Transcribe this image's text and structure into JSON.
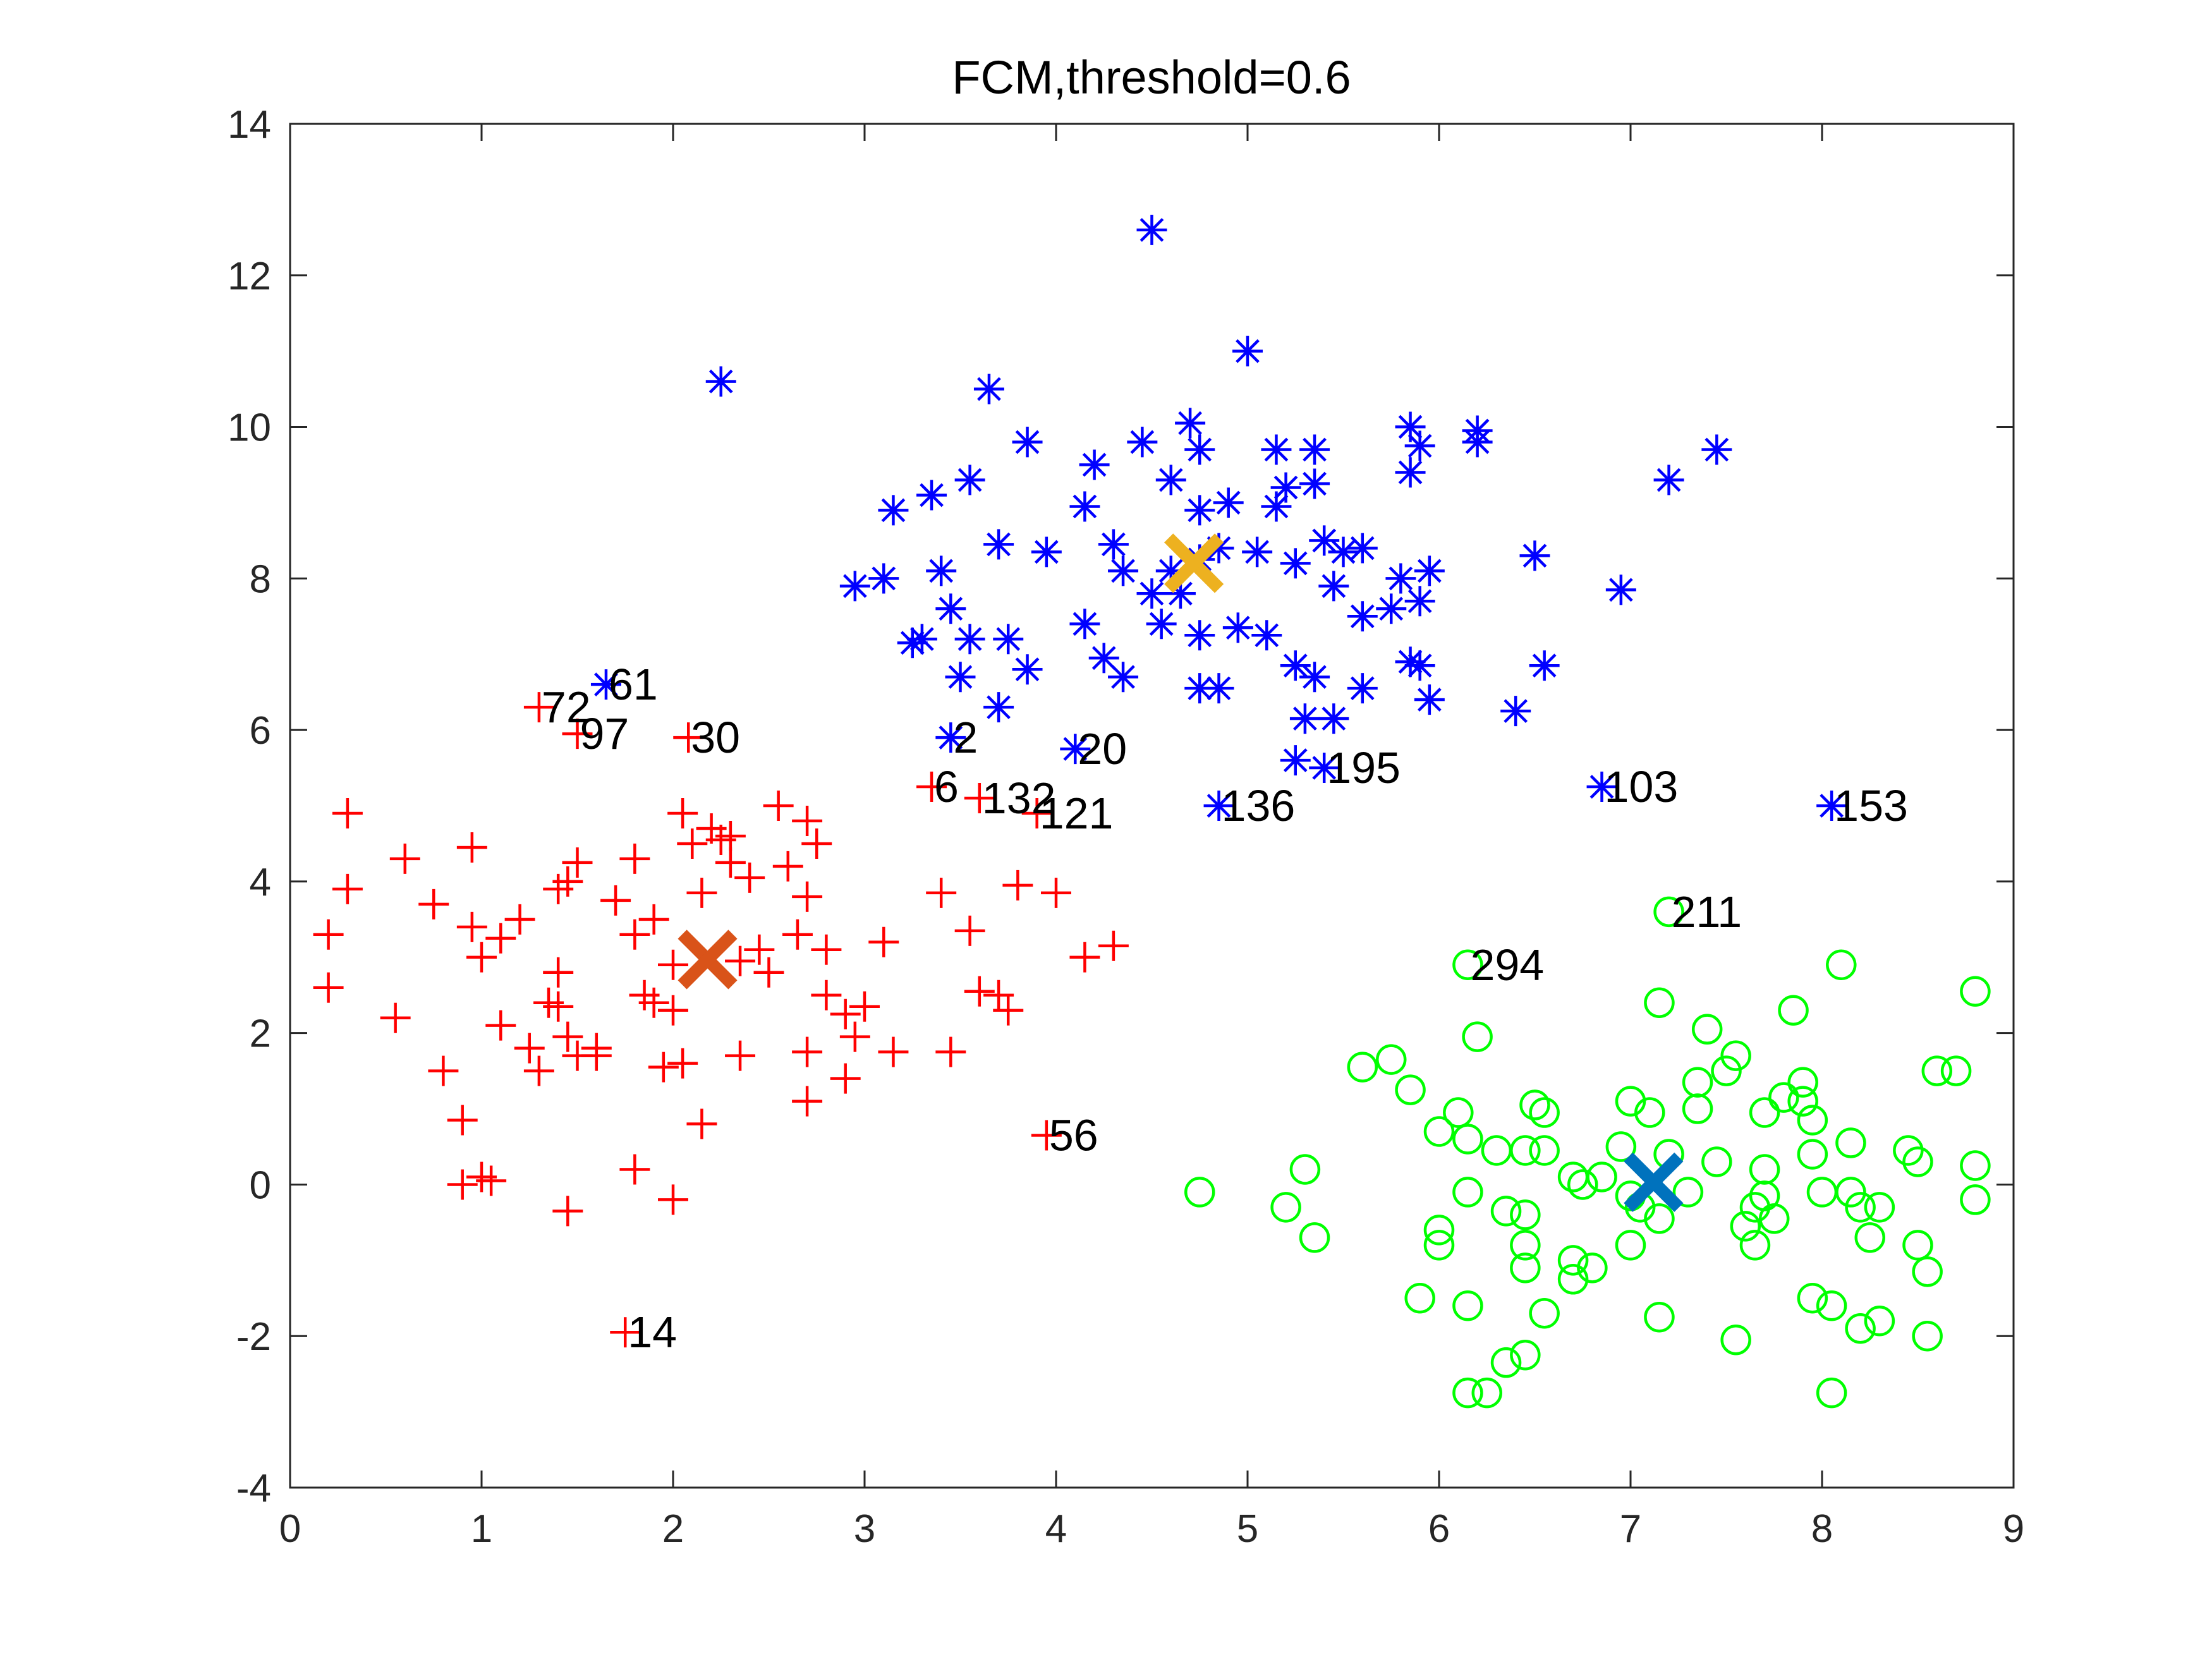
{
  "chart_data": {
    "type": "scatter",
    "title": "FCM,threshold=0.6",
    "xlabel": "",
    "ylabel": "",
    "xlim": [
      0,
      9
    ],
    "ylim": [
      -4,
      14
    ],
    "xticks": [
      0,
      1,
      2,
      3,
      4,
      5,
      6,
      7,
      8,
      9
    ],
    "yticks": [
      -4,
      -2,
      0,
      2,
      4,
      6,
      8,
      10,
      12,
      14
    ],
    "xtick_labels": [
      "0",
      "1",
      "2",
      "3",
      "4",
      "5",
      "6",
      "7",
      "8",
      "9"
    ],
    "ytick_labels": [
      "-4",
      "-2",
      "0",
      "2",
      "4",
      "6",
      "8",
      "10",
      "12",
      "14"
    ],
    "grid": false,
    "colors": {
      "cluster_red": "#ff0000",
      "cluster_blue": "#0000ff",
      "cluster_green": "#00ff00",
      "center_orange_red": "#d95319",
      "center_yellow": "#edb120",
      "center_blue": "#0072bd"
    },
    "series": [
      {
        "marker": "plus",
        "color": "#ff0000",
        "points": [
          [
            0.2,
            2.6
          ],
          [
            0.2,
            3.3
          ],
          [
            0.3,
            3.9
          ],
          [
            0.3,
            4.9
          ],
          [
            0.55,
            2.2
          ],
          [
            0.6,
            4.3
          ],
          [
            0.75,
            3.7
          ],
          [
            0.8,
            1.5
          ],
          [
            0.9,
            0.85
          ],
          [
            0.95,
            4.45
          ],
          [
            0.95,
            3.4
          ],
          [
            1.0,
            3.0
          ],
          [
            1.1,
            3.25
          ],
          [
            1.1,
            2.1
          ],
          [
            1.2,
            3.5
          ],
          [
            1.25,
            1.8
          ],
          [
            1.3,
            1.5
          ],
          [
            1.35,
            2.4
          ],
          [
            1.4,
            2.35
          ],
          [
            1.4,
            2.8
          ],
          [
            1.4,
            3.9
          ],
          [
            1.45,
            1.95
          ],
          [
            1.5,
            4.25
          ],
          [
            1.5,
            1.7
          ],
          [
            1.6,
            1.8
          ],
          [
            1.6,
            1.7
          ],
          [
            1.7,
            3.75
          ],
          [
            1.8,
            3.3
          ],
          [
            1.85,
            2.5
          ],
          [
            1.9,
            2.4
          ],
          [
            1.9,
            3.5
          ],
          [
            1.95,
            1.55
          ],
          [
            2.0,
            2.9
          ],
          [
            2.0,
            2.3
          ],
          [
            2.05,
            1.6
          ],
          [
            2.1,
            4.5
          ],
          [
            2.15,
            3.85
          ],
          [
            2.2,
            4.7
          ],
          [
            2.25,
            4.55
          ],
          [
            2.3,
            4.25
          ],
          [
            2.35,
            2.95
          ],
          [
            2.4,
            4.05
          ],
          [
            2.45,
            3.1
          ],
          [
            2.5,
            2.8
          ],
          [
            2.55,
            5.0
          ],
          [
            2.6,
            4.2
          ],
          [
            2.65,
            3.3
          ],
          [
            2.7,
            4.8
          ],
          [
            2.7,
            3.8
          ],
          [
            2.75,
            4.5
          ],
          [
            2.8,
            3.1
          ],
          [
            2.8,
            2.5
          ],
          [
            2.9,
            2.25
          ],
          [
            2.95,
            1.95
          ],
          [
            3.0,
            2.35
          ],
          [
            3.15,
            1.75
          ],
          [
            0.9,
            0.0
          ],
          [
            1.0,
            0.1
          ],
          [
            1.05,
            0.05
          ],
          [
            1.45,
            -0.35
          ],
          [
            1.8,
            0.2
          ],
          [
            2.0,
            -0.2
          ],
          [
            2.15,
            0.8
          ],
          [
            1.8,
            4.3
          ],
          [
            2.7,
            1.75
          ],
          [
            2.7,
            1.1
          ],
          [
            2.35,
            1.7
          ],
          [
            2.9,
            1.4
          ],
          [
            3.1,
            3.2
          ],
          [
            3.4,
            3.85
          ],
          [
            3.55,
            3.35
          ],
          [
            3.6,
            2.55
          ],
          [
            3.7,
            2.5
          ],
          [
            3.75,
            2.3
          ],
          [
            3.8,
            3.95
          ],
          [
            4.0,
            3.85
          ],
          [
            4.15,
            3.0
          ],
          [
            4.3,
            3.15
          ],
          [
            3.45,
            1.75
          ],
          [
            2.05,
            4.9
          ],
          [
            1.45,
            4.0
          ],
          [
            2.3,
            4.6
          ],
          [
            1.3,
            6.3
          ],
          [
            1.5,
            5.95
          ],
          [
            2.08,
            5.9
          ],
          [
            3.35,
            5.25
          ],
          [
            3.6,
            5.1
          ],
          [
            3.9,
            4.9
          ],
          [
            3.95,
            0.65
          ],
          [
            1.75,
            -1.95
          ]
        ]
      },
      {
        "marker": "asterisk",
        "color": "#0000ff",
        "points": [
          [
            4.5,
            12.6
          ],
          [
            5.0,
            11.0
          ],
          [
            2.25,
            10.6
          ],
          [
            3.65,
            10.5
          ],
          [
            3.85,
            9.8
          ],
          [
            4.2,
            9.5
          ],
          [
            4.45,
            9.8
          ],
          [
            4.7,
            10.05
          ],
          [
            4.75,
            9.7
          ],
          [
            5.15,
            9.7
          ],
          [
            5.35,
            9.7
          ],
          [
            5.85,
            10.0
          ],
          [
            5.9,
            9.75
          ],
          [
            6.2,
            9.95
          ],
          [
            6.2,
            9.8
          ],
          [
            7.2,
            9.3
          ],
          [
            7.45,
            9.7
          ],
          [
            3.15,
            8.9
          ],
          [
            3.35,
            9.1
          ],
          [
            3.55,
            9.3
          ],
          [
            4.15,
            8.95
          ],
          [
            4.6,
            9.3
          ],
          [
            4.75,
            8.9
          ],
          [
            4.9,
            9.0
          ],
          [
            5.15,
            8.95
          ],
          [
            5.2,
            9.2
          ],
          [
            5.35,
            9.25
          ],
          [
            5.85,
            9.4
          ],
          [
            2.95,
            7.9
          ],
          [
            3.1,
            8.0
          ],
          [
            3.4,
            8.1
          ],
          [
            3.7,
            8.45
          ],
          [
            3.95,
            8.35
          ],
          [
            4.3,
            8.45
          ],
          [
            4.35,
            8.1
          ],
          [
            4.5,
            7.8
          ],
          [
            4.6,
            8.1
          ],
          [
            4.75,
            8.25
          ],
          [
            4.85,
            8.4
          ],
          [
            5.05,
            8.35
          ],
          [
            5.25,
            8.2
          ],
          [
            5.4,
            8.5
          ],
          [
            5.5,
            8.35
          ],
          [
            5.6,
            8.4
          ],
          [
            5.8,
            8.0
          ],
          [
            5.9,
            7.7
          ],
          [
            5.95,
            8.1
          ],
          [
            6.5,
            8.3
          ],
          [
            6.95,
            7.85
          ],
          [
            3.25,
            7.15
          ],
          [
            3.3,
            7.2
          ],
          [
            3.45,
            7.6
          ],
          [
            3.55,
            7.2
          ],
          [
            3.75,
            7.2
          ],
          [
            3.85,
            6.8
          ],
          [
            4.15,
            7.4
          ],
          [
            4.25,
            6.95
          ],
          [
            4.35,
            6.7
          ],
          [
            4.55,
            7.4
          ],
          [
            4.65,
            7.8
          ],
          [
            4.75,
            7.25
          ],
          [
            4.95,
            7.35
          ],
          [
            5.1,
            7.25
          ],
          [
            5.25,
            6.85
          ],
          [
            5.35,
            6.7
          ],
          [
            5.45,
            7.9
          ],
          [
            5.6,
            7.5
          ],
          [
            5.75,
            7.6
          ],
          [
            5.85,
            6.9
          ],
          [
            5.9,
            6.85
          ],
          [
            5.95,
            6.4
          ],
          [
            6.4,
            6.25
          ],
          [
            6.55,
            6.85
          ],
          [
            3.5,
            6.7
          ],
          [
            3.7,
            6.3
          ],
          [
            4.75,
            6.55
          ],
          [
            4.85,
            6.55
          ],
          [
            5.3,
            6.15
          ],
          [
            5.45,
            6.15
          ],
          [
            5.6,
            6.55
          ],
          [
            1.65,
            6.6
          ],
          [
            3.45,
            5.9
          ],
          [
            4.1,
            5.75
          ],
          [
            5.25,
            5.6
          ],
          [
            5.4,
            5.5
          ],
          [
            4.85,
            5.0
          ],
          [
            6.85,
            5.25
          ],
          [
            8.05,
            5.0
          ]
        ]
      },
      {
        "marker": "circle",
        "color": "#00ff00",
        "points": [
          [
            7.2,
            3.6
          ],
          [
            6.15,
            2.9
          ],
          [
            8.1,
            2.9
          ],
          [
            8.8,
            2.55
          ],
          [
            7.15,
            2.4
          ],
          [
            7.4,
            2.05
          ],
          [
            7.85,
            2.3
          ],
          [
            6.2,
            1.95
          ],
          [
            7.55,
            1.7
          ],
          [
            5.6,
            1.55
          ],
          [
            5.75,
            1.65
          ],
          [
            5.85,
            1.25
          ],
          [
            6.1,
            0.95
          ],
          [
            6.5,
            1.05
          ],
          [
            6.55,
            0.95
          ],
          [
            7.0,
            1.1
          ],
          [
            7.1,
            0.95
          ],
          [
            7.35,
            1.35
          ],
          [
            7.35,
            1.0
          ],
          [
            7.5,
            1.5
          ],
          [
            7.7,
            0.95
          ],
          [
            7.8,
            1.15
          ],
          [
            7.9,
            1.1
          ],
          [
            7.9,
            1.35
          ],
          [
            7.95,
            0.85
          ],
          [
            8.6,
            1.5
          ],
          [
            8.7,
            1.5
          ],
          [
            6.0,
            0.7
          ],
          [
            6.15,
            0.6
          ],
          [
            6.3,
            0.45
          ],
          [
            6.45,
            0.45
          ],
          [
            6.55,
            0.45
          ],
          [
            6.95,
            0.5
          ],
          [
            7.2,
            0.4
          ],
          [
            7.45,
            0.3
          ],
          [
            7.7,
            0.2
          ],
          [
            7.95,
            0.4
          ],
          [
            8.15,
            0.55
          ],
          [
            8.45,
            0.45
          ],
          [
            8.5,
            0.3
          ],
          [
            8.8,
            0.25
          ],
          [
            4.75,
            -0.1
          ],
          [
            5.2,
            -0.3
          ],
          [
            5.3,
            0.2
          ],
          [
            6.15,
            -0.1
          ],
          [
            6.35,
            -0.35
          ],
          [
            6.45,
            -0.4
          ],
          [
            6.7,
            0.1
          ],
          [
            6.75,
            0.0
          ],
          [
            6.85,
            0.1
          ],
          [
            7.0,
            -0.15
          ],
          [
            7.05,
            -0.3
          ],
          [
            7.15,
            -0.45
          ],
          [
            7.3,
            -0.1
          ],
          [
            7.65,
            -0.3
          ],
          [
            7.7,
            -0.15
          ],
          [
            7.75,
            -0.45
          ],
          [
            8.0,
            -0.1
          ],
          [
            8.15,
            -0.1
          ],
          [
            8.2,
            -0.3
          ],
          [
            8.3,
            -0.3
          ],
          [
            8.8,
            -0.2
          ],
          [
            5.35,
            -0.7
          ],
          [
            6.0,
            -0.6
          ],
          [
            6.0,
            -0.8
          ],
          [
            6.45,
            -0.8
          ],
          [
            6.7,
            -1.0
          ],
          [
            6.7,
            -1.25
          ],
          [
            6.8,
            -1.1
          ],
          [
            7.0,
            -0.8
          ],
          [
            7.6,
            -0.55
          ],
          [
            7.65,
            -0.8
          ],
          [
            8.25,
            -0.7
          ],
          [
            8.5,
            -0.8
          ],
          [
            8.55,
            -1.15
          ],
          [
            5.9,
            -1.5
          ],
          [
            6.15,
            -1.6
          ],
          [
            6.45,
            -1.1
          ],
          [
            6.55,
            -1.7
          ],
          [
            7.15,
            -1.75
          ],
          [
            7.55,
            -2.05
          ],
          [
            7.95,
            -1.5
          ],
          [
            8.05,
            -1.6
          ],
          [
            8.2,
            -1.9
          ],
          [
            8.3,
            -1.8
          ],
          [
            8.55,
            -2.0
          ],
          [
            6.35,
            -2.35
          ],
          [
            6.45,
            -2.25
          ],
          [
            6.15,
            -2.75
          ],
          [
            6.25,
            -2.75
          ],
          [
            8.05,
            -2.75
          ]
        ]
      }
    ],
    "centers": [
      {
        "x": 2.18,
        "y": 2.97,
        "color": "#d95319"
      },
      {
        "x": 4.72,
        "y": 8.2,
        "color": "#edb120"
      },
      {
        "x": 7.12,
        "y": 0.03,
        "color": "#0072bd"
      }
    ],
    "annotations": [
      {
        "text": "61",
        "x": 1.65,
        "y": 6.6
      },
      {
        "text": "72",
        "x": 1.3,
        "y": 6.3
      },
      {
        "text": "97",
        "x": 1.5,
        "y": 5.95
      },
      {
        "text": "30",
        "x": 2.08,
        "y": 5.9
      },
      {
        "text": "2",
        "x": 3.45,
        "y": 5.9
      },
      {
        "text": "20",
        "x": 4.1,
        "y": 5.75
      },
      {
        "text": "6",
        "x": 3.35,
        "y": 5.25
      },
      {
        "text": "132",
        "x": 3.6,
        "y": 5.1
      },
      {
        "text": "121",
        "x": 3.9,
        "y": 4.9
      },
      {
        "text": "136",
        "x": 4.85,
        "y": 5.0
      },
      {
        "text": "195",
        "x": 5.4,
        "y": 5.5
      },
      {
        "text": "103",
        "x": 6.85,
        "y": 5.25
      },
      {
        "text": "153",
        "x": 8.05,
        "y": 5.0
      },
      {
        "text": "211",
        "x": 7.2,
        "y": 3.6
      },
      {
        "text": "294",
        "x": 6.15,
        "y": 2.9
      },
      {
        "text": "56",
        "x": 3.95,
        "y": 0.65
      },
      {
        "text": "14",
        "x": 1.75,
        "y": -1.95
      }
    ]
  }
}
